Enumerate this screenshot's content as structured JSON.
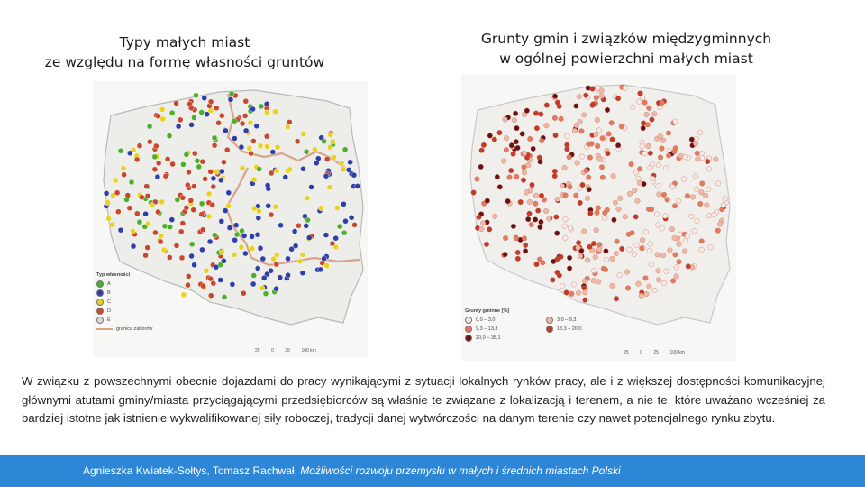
{
  "left_map": {
    "title_line1": "Typy małych miast",
    "title_line2": "ze względu na formę własności gruntów",
    "legend_title": "Typ własności",
    "legend_items": [
      {
        "label": "A",
        "color": "#4caf2a"
      },
      {
        "label": "B",
        "color": "#2f3fa8"
      },
      {
        "label": "C",
        "color": "#e8d21c"
      },
      {
        "label": "D",
        "color": "#c9472e"
      },
      {
        "label": "E",
        "color": "#d9d9d9"
      }
    ],
    "border_label": "granica zaborów",
    "scale_labels": [
      "25",
      "0",
      "25",
      "100 km"
    ]
  },
  "right_map": {
    "title_line1": "Grunty gmin i związków międzygminnych",
    "title_line2": "w ogólnej powierzchni małych miast",
    "legend_title": "Grunty gminne [%]",
    "legend_items": [
      {
        "label": "0,0 – 3,0",
        "color": "#fbe9e4"
      },
      {
        "label": "3,0 – 9,3",
        "color": "#f2b8a6"
      },
      {
        "label": "9,3 – 13,3",
        "color": "#e57a5c"
      },
      {
        "label": "13,3 – 20,0",
        "color": "#c53a26"
      },
      {
        "label": "20,0 – 38,1",
        "color": "#6e0f12"
      }
    ],
    "scale_labels": [
      "25",
      "0",
      "25",
      "100 km"
    ]
  },
  "body_text": "W związku z powszechnymi obecnie dojazdami do pracy wynikającymi z sytuacji lokalnych rynków pracy, ale i z większej dostępności komunikacyjnej głównymi atutami gminy/miasta przyciągającymi przedsiębiorców są właśnie te związane z lokalizacją i terenem, a nie te, które uważano wcześniej za bardziej istotne jak istnienie wykwalifikowanej siły roboczej, tradycji danej wytwórczości na danym terenie czy nawet potencjalnego rynku zbytu.",
  "footer": {
    "authors": "Agnieszka Kwiatek-Sołtys, Tomasz Rachwał, ",
    "publication": "Możliwości rozwoju przemysłu w małych i średnich miastach Polski"
  }
}
